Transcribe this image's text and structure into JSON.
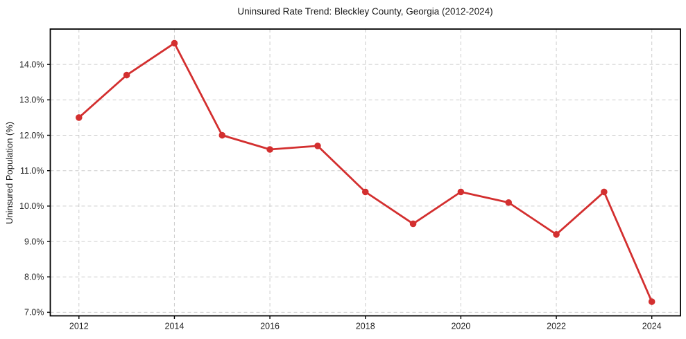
{
  "chart_data": {
    "type": "line",
    "title": "Uninsured Rate Trend: Bleckley County, Georgia (2012-2024)",
    "xlabel": "",
    "ylabel": "Uninsured Population (%)",
    "x": [
      2012,
      2013,
      2014,
      2015,
      2016,
      2017,
      2018,
      2019,
      2020,
      2021,
      2022,
      2023,
      2024
    ],
    "values": [
      12.5,
      13.7,
      14.6,
      12.0,
      11.6,
      11.7,
      10.4,
      9.5,
      10.4,
      10.1,
      9.2,
      10.4,
      7.3
    ],
    "x_ticks": [
      2012,
      2014,
      2016,
      2018,
      2020,
      2022,
      2024
    ],
    "x_tick_labels": [
      "2012",
      "2014",
      "2016",
      "2018",
      "2020",
      "2022",
      "2024"
    ],
    "y_ticks": [
      7,
      8,
      9,
      10,
      11,
      12,
      13,
      14
    ],
    "y_tick_labels": [
      "7.0%",
      "8.0%",
      "9.0%",
      "10.0%",
      "11.0%",
      "12.0%",
      "13.0%",
      "14.0%"
    ],
    "xlim": [
      2011.4,
      2024.6
    ],
    "ylim": [
      6.9,
      15.0
    ],
    "grid": true,
    "grid_style": "dashed",
    "legend": false,
    "marker": "circle",
    "colors": {
      "line": "#d32f2f",
      "marker": "#d32f2f",
      "grid": "#cccccc",
      "spine": "#000000",
      "text": "#262626",
      "background": "#ffffff"
    }
  }
}
